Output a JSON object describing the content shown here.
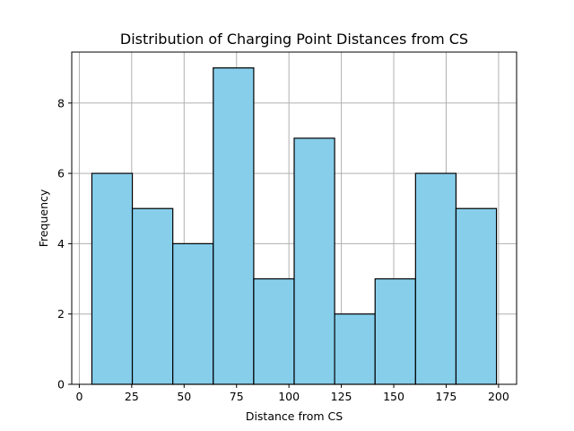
{
  "chart_data": {
    "type": "bar",
    "title": "Distribution of Charging Point Distances from CS",
    "xlabel": "Distance from CS",
    "ylabel": "Frequency",
    "bin_edges": [
      6.0,
      25.3,
      44.6,
      63.9,
      83.2,
      102.5,
      121.8,
      141.1,
      160.4,
      179.7,
      199.0
    ],
    "values": [
      6,
      5,
      4,
      9,
      3,
      7,
      2,
      3,
      6,
      5
    ],
    "xlim": [
      -3.6,
      208.6
    ],
    "ylim": [
      0,
      9.45
    ],
    "xticks": [
      0,
      25,
      50,
      75,
      100,
      125,
      150,
      175,
      200
    ],
    "yticks": [
      0,
      2,
      4,
      6,
      8
    ],
    "grid": true,
    "bar_color": "#87ceeb",
    "edge_color": "#000000",
    "grid_color": "#b0b0b0"
  }
}
